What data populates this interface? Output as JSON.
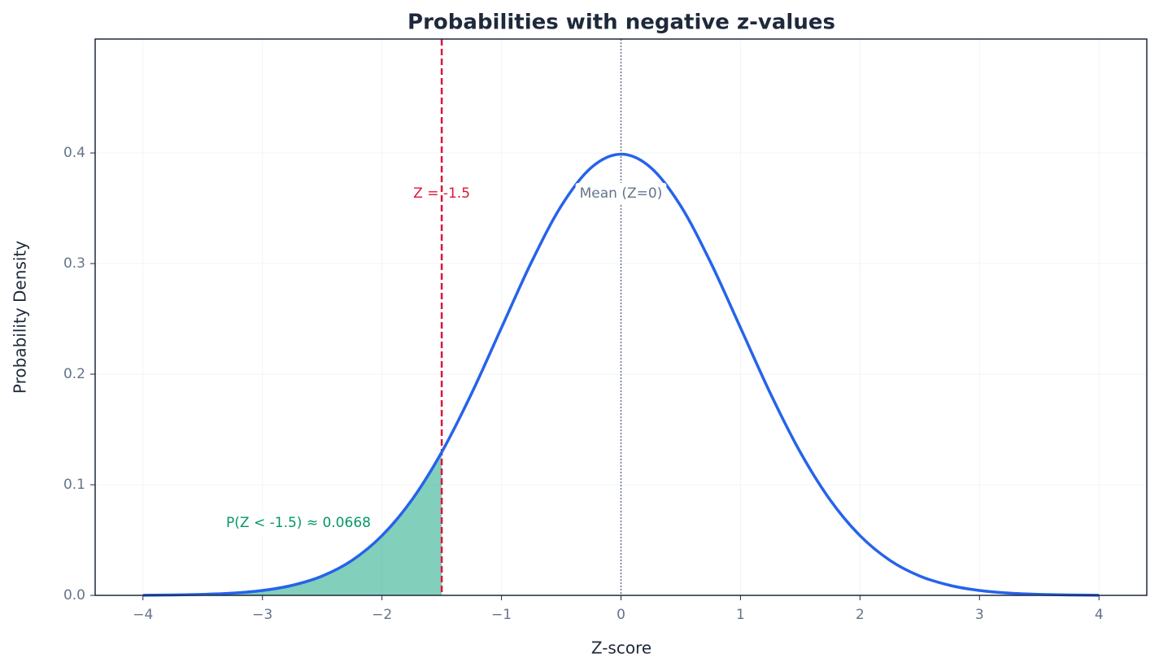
{
  "chart_data": {
    "type": "line",
    "title": "Probabilities with negative z-values",
    "x_label": "Z-score",
    "y_label": "Probability Density",
    "x": [
      -4,
      -3.75,
      -3.5,
      -3.25,
      -3,
      -2.75,
      -2.5,
      -2.25,
      -2,
      -1.75,
      -1.5,
      -1.25,
      -1,
      -0.75,
      -0.5,
      -0.25,
      0,
      0.25,
      0.5,
      0.75,
      1,
      1.25,
      1.5,
      1.75,
      2,
      2.25,
      2.5,
      2.75,
      3,
      3.25,
      3.5,
      3.75,
      4
    ],
    "series": [
      {
        "color": "#2563eb",
        "values": [
          0.0001,
          0.0004,
          0.0009,
          0.002,
          0.0044,
          0.0091,
          0.0175,
          0.0317,
          0.054,
          0.0863,
          0.1295,
          0.1826,
          0.242,
          0.3011,
          0.3521,
          0.3867,
          0.3989,
          0.3867,
          0.3521,
          0.3011,
          0.242,
          0.1826,
          0.1295,
          0.0863,
          0.054,
          0.0317,
          0.0175,
          0.0091,
          0.0044,
          0.002,
          0.0009,
          0.0004,
          0.0001
        ]
      }
    ],
    "shade": {
      "to_x": -1.5,
      "color": "#10a37f"
    },
    "vlines": [
      {
        "x": -1.5,
        "color": "#dc143c",
        "style": "dashed",
        "label": "Z = -1.5"
      },
      {
        "x": 0,
        "color": "#64748b",
        "style": "dotted",
        "label": "Mean (Z=0)"
      }
    ],
    "annotation": {
      "text": "P(Z < -1.5) ≈ 0.0668",
      "color": "#059669"
    },
    "xlim": [
      -4.4,
      4.4
    ],
    "ylim": [
      0,
      0.503
    ],
    "xticks": [
      {
        "value": -4,
        "label": "−4"
      },
      {
        "value": -3,
        "label": "−3"
      },
      {
        "value": -2,
        "label": "−2"
      },
      {
        "value": -1,
        "label": "−1"
      },
      0,
      1,
      2,
      3,
      4
    ],
    "yticks": [
      {
        "value": 0,
        "label": "0.0"
      },
      0.1,
      0.2,
      0.3,
      0.4
    ],
    "grid": true
  }
}
